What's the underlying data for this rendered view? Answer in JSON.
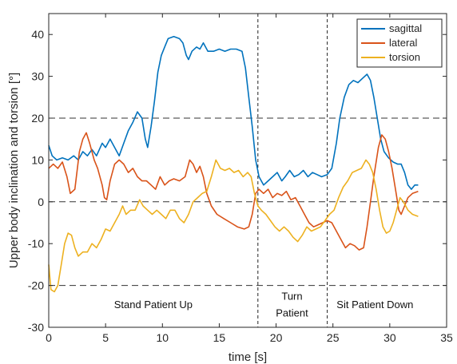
{
  "chart_data": {
    "type": "line",
    "title": "",
    "xlabel": "time [s]",
    "ylabel": "Upper body inclination and torsion [°]",
    "xlim": [
      0,
      35
    ],
    "ylim": [
      -30,
      45
    ],
    "xticks": [
      0,
      5,
      10,
      15,
      20,
      25,
      30,
      35
    ],
    "yticks": [
      -30,
      -20,
      -10,
      0,
      10,
      20,
      30,
      40
    ],
    "grid": false,
    "legend_position": "top-right",
    "reference_lines_y": [
      20,
      0,
      -20
    ],
    "phase_boundaries_x": [
      18.4,
      24.5
    ],
    "phase_labels": [
      {
        "text": "Stand Patient Up",
        "x": 9.2,
        "y": -24.5
      },
      {
        "text": "Turn",
        "x": 21.4,
        "y": -22.5
      },
      {
        "text": "Patient",
        "x": 21.4,
        "y": -26.5
      },
      {
        "text": "Sit Patient Down",
        "x": 28.7,
        "y": -24.5
      }
    ],
    "series": [
      {
        "name": "sagittal",
        "color": "#0072BD",
        "points": [
          [
            0,
            13.5
          ],
          [
            0.3,
            11
          ],
          [
            0.7,
            10
          ],
          [
            1.2,
            10.5
          ],
          [
            1.7,
            10
          ],
          [
            2.2,
            11
          ],
          [
            2.6,
            10
          ],
          [
            3.0,
            12
          ],
          [
            3.4,
            11
          ],
          [
            3.8,
            12.5
          ],
          [
            4.2,
            11
          ],
          [
            4.7,
            14
          ],
          [
            5.0,
            13
          ],
          [
            5.4,
            15
          ],
          [
            5.8,
            13
          ],
          [
            6.2,
            11
          ],
          [
            6.6,
            14
          ],
          [
            7.0,
            17
          ],
          [
            7.4,
            19
          ],
          [
            7.8,
            21.5
          ],
          [
            8.2,
            20
          ],
          [
            8.5,
            15
          ],
          [
            8.7,
            13
          ],
          [
            9.0,
            18
          ],
          [
            9.3,
            24
          ],
          [
            9.6,
            31
          ],
          [
            9.9,
            35
          ],
          [
            10.2,
            37
          ],
          [
            10.5,
            39
          ],
          [
            11.0,
            39.5
          ],
          [
            11.5,
            39
          ],
          [
            11.8,
            38
          ],
          [
            12.1,
            35
          ],
          [
            12.3,
            34
          ],
          [
            12.6,
            36
          ],
          [
            13.0,
            37
          ],
          [
            13.3,
            36.5
          ],
          [
            13.6,
            38
          ],
          [
            14.0,
            36
          ],
          [
            14.5,
            36
          ],
          [
            15.0,
            36.5
          ],
          [
            15.5,
            36
          ],
          [
            16.0,
            36.5
          ],
          [
            16.5,
            36.5
          ],
          [
            17.0,
            36
          ],
          [
            17.3,
            32
          ],
          [
            17.6,
            25
          ],
          [
            17.9,
            18
          ],
          [
            18.2,
            10
          ],
          [
            18.5,
            6
          ],
          [
            18.9,
            4
          ],
          [
            19.3,
            5
          ],
          [
            19.7,
            6
          ],
          [
            20.1,
            7
          ],
          [
            20.5,
            5
          ],
          [
            20.8,
            6
          ],
          [
            21.2,
            7.5
          ],
          [
            21.6,
            6
          ],
          [
            22.0,
            6.5
          ],
          [
            22.4,
            7.5
          ],
          [
            22.8,
            6
          ],
          [
            23.2,
            7
          ],
          [
            23.6,
            6.5
          ],
          [
            24.0,
            6
          ],
          [
            24.5,
            6.5
          ],
          [
            24.9,
            8
          ],
          [
            25.3,
            14
          ],
          [
            25.6,
            20
          ],
          [
            26.0,
            25
          ],
          [
            26.4,
            28
          ],
          [
            26.8,
            29
          ],
          [
            27.2,
            28.5
          ],
          [
            27.6,
            29.5
          ],
          [
            28.0,
            30.5
          ],
          [
            28.3,
            29
          ],
          [
            28.6,
            25
          ],
          [
            28.9,
            20
          ],
          [
            29.2,
            15
          ],
          [
            29.5,
            12
          ],
          [
            29.9,
            10.5
          ],
          [
            30.3,
            9.5
          ],
          [
            30.7,
            9
          ],
          [
            31.0,
            9
          ],
          [
            31.3,
            7
          ],
          [
            31.6,
            4
          ],
          [
            31.9,
            3
          ],
          [
            32.2,
            4
          ],
          [
            32.5,
            4
          ]
        ]
      },
      {
        "name": "lateral",
        "color": "#D95319",
        "points": [
          [
            0,
            8
          ],
          [
            0.4,
            9
          ],
          [
            0.8,
            8
          ],
          [
            1.2,
            9.5
          ],
          [
            1.6,
            6
          ],
          [
            1.9,
            2
          ],
          [
            2.3,
            3
          ],
          [
            2.7,
            12
          ],
          [
            3.0,
            15
          ],
          [
            3.3,
            16.5
          ],
          [
            3.6,
            14
          ],
          [
            4.0,
            10
          ],
          [
            4.3,
            8
          ],
          [
            4.7,
            4
          ],
          [
            4.9,
            1
          ],
          [
            5.1,
            0.5
          ],
          [
            5.4,
            5
          ],
          [
            5.8,
            9
          ],
          [
            6.2,
            10
          ],
          [
            6.6,
            9
          ],
          [
            7.0,
            7
          ],
          [
            7.4,
            8
          ],
          [
            7.8,
            6
          ],
          [
            8.2,
            5
          ],
          [
            8.6,
            5
          ],
          [
            9.0,
            4
          ],
          [
            9.4,
            3
          ],
          [
            9.8,
            6
          ],
          [
            10.2,
            4
          ],
          [
            10.6,
            5
          ],
          [
            11.0,
            5.5
          ],
          [
            11.5,
            5
          ],
          [
            12.0,
            6
          ],
          [
            12.4,
            10
          ],
          [
            12.7,
            9
          ],
          [
            13.0,
            7
          ],
          [
            13.3,
            8.5
          ],
          [
            13.6,
            6
          ],
          [
            13.9,
            2
          ],
          [
            14.3,
            -1
          ],
          [
            14.8,
            -3
          ],
          [
            15.4,
            -4
          ],
          [
            16.0,
            -5
          ],
          [
            16.6,
            -6
          ],
          [
            17.2,
            -6.5
          ],
          [
            17.6,
            -6
          ],
          [
            17.9,
            -3
          ],
          [
            18.2,
            2
          ],
          [
            18.5,
            3
          ],
          [
            18.9,
            2
          ],
          [
            19.3,
            3
          ],
          [
            19.7,
            1
          ],
          [
            20.1,
            2
          ],
          [
            20.5,
            1.5
          ],
          [
            20.9,
            2.5
          ],
          [
            21.3,
            0.5
          ],
          [
            21.7,
            1
          ],
          [
            22.1,
            -1
          ],
          [
            22.5,
            -3
          ],
          [
            22.9,
            -5
          ],
          [
            23.3,
            -6
          ],
          [
            23.7,
            -5.5
          ],
          [
            24.1,
            -5
          ],
          [
            24.5,
            -4.5
          ],
          [
            24.9,
            -5
          ],
          [
            25.3,
            -7
          ],
          [
            25.7,
            -9
          ],
          [
            26.1,
            -11
          ],
          [
            26.5,
            -10
          ],
          [
            26.9,
            -10.5
          ],
          [
            27.3,
            -11.5
          ],
          [
            27.7,
            -11
          ],
          [
            28.0,
            -6
          ],
          [
            28.3,
            0
          ],
          [
            28.6,
            6
          ],
          [
            29.0,
            13
          ],
          [
            29.3,
            16
          ],
          [
            29.6,
            15
          ],
          [
            29.9,
            12
          ],
          [
            30.2,
            8
          ],
          [
            30.5,
            3
          ],
          [
            30.8,
            -2
          ],
          [
            31.0,
            -3
          ],
          [
            31.3,
            -1
          ],
          [
            31.6,
            1
          ],
          [
            32.0,
            2
          ],
          [
            32.5,
            2.5
          ]
        ]
      },
      {
        "name": "torsion",
        "color": "#EDB120",
        "points": [
          [
            0,
            -15
          ],
          [
            0.2,
            -21
          ],
          [
            0.5,
            -21.5
          ],
          [
            0.8,
            -20
          ],
          [
            1.1,
            -15
          ],
          [
            1.4,
            -10
          ],
          [
            1.7,
            -7.5
          ],
          [
            2.0,
            -8
          ],
          [
            2.3,
            -11
          ],
          [
            2.6,
            -13
          ],
          [
            3.0,
            -12
          ],
          [
            3.4,
            -12
          ],
          [
            3.8,
            -10
          ],
          [
            4.2,
            -11
          ],
          [
            4.6,
            -9
          ],
          [
            5.0,
            -6.5
          ],
          [
            5.4,
            -7
          ],
          [
            5.8,
            -5
          ],
          [
            6.2,
            -3
          ],
          [
            6.5,
            -1
          ],
          [
            6.8,
            -3
          ],
          [
            7.2,
            -2
          ],
          [
            7.6,
            -2
          ],
          [
            8.0,
            0.5
          ],
          [
            8.3,
            -1
          ],
          [
            8.7,
            -2
          ],
          [
            9.1,
            -3
          ],
          [
            9.5,
            -2
          ],
          [
            9.9,
            -3
          ],
          [
            10.3,
            -4
          ],
          [
            10.7,
            -2
          ],
          [
            11.1,
            -2
          ],
          [
            11.5,
            -4
          ],
          [
            11.9,
            -5
          ],
          [
            12.3,
            -3
          ],
          [
            12.7,
            0
          ],
          [
            13.1,
            1
          ],
          [
            13.5,
            2
          ],
          [
            13.9,
            2.5
          ],
          [
            14.3,
            6
          ],
          [
            14.7,
            10
          ],
          [
            15.1,
            8
          ],
          [
            15.5,
            7.5
          ],
          [
            15.9,
            8
          ],
          [
            16.3,
            7
          ],
          [
            16.7,
            7.5
          ],
          [
            17.1,
            6
          ],
          [
            17.5,
            7
          ],
          [
            17.8,
            6
          ],
          [
            18.1,
            2
          ],
          [
            18.4,
            -1
          ],
          [
            18.7,
            -2
          ],
          [
            19.1,
            -3
          ],
          [
            19.5,
            -4.5
          ],
          [
            19.9,
            -6
          ],
          [
            20.3,
            -7
          ],
          [
            20.7,
            -6
          ],
          [
            21.1,
            -7
          ],
          [
            21.5,
            -8.5
          ],
          [
            21.9,
            -9.5
          ],
          [
            22.3,
            -8
          ],
          [
            22.7,
            -6
          ],
          [
            23.1,
            -7
          ],
          [
            23.5,
            -6.5
          ],
          [
            23.9,
            -6
          ],
          [
            24.3,
            -4.5
          ],
          [
            24.7,
            -3
          ],
          [
            25.1,
            -2
          ],
          [
            25.5,
            1
          ],
          [
            25.9,
            3.5
          ],
          [
            26.3,
            5
          ],
          [
            26.7,
            7
          ],
          [
            27.1,
            7.5
          ],
          [
            27.5,
            8
          ],
          [
            27.9,
            10
          ],
          [
            28.2,
            9
          ],
          [
            28.5,
            7
          ],
          [
            28.8,
            3
          ],
          [
            29.1,
            -2
          ],
          [
            29.4,
            -6
          ],
          [
            29.7,
            -7.5
          ],
          [
            30.0,
            -7
          ],
          [
            30.3,
            -5
          ],
          [
            30.6,
            -2
          ],
          [
            30.9,
            1
          ],
          [
            31.2,
            0
          ],
          [
            31.6,
            -2
          ],
          [
            32.0,
            -3
          ],
          [
            32.5,
            -3.5
          ]
        ]
      }
    ]
  }
}
